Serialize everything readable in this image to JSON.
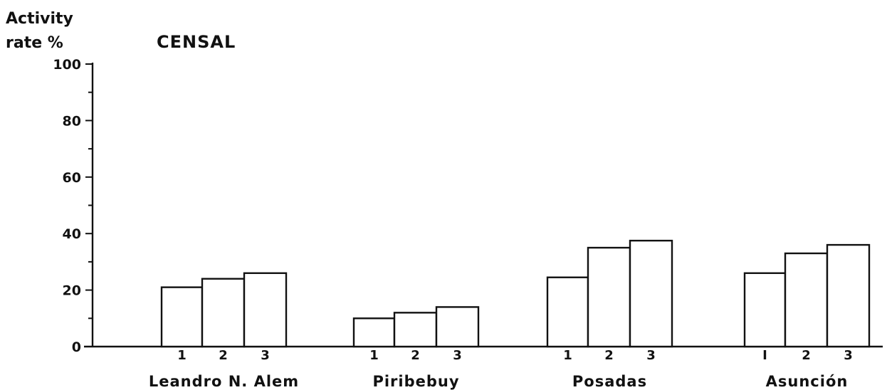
{
  "chart_data": {
    "type": "bar",
    "title": "CENSAL",
    "ylabel_line1": "Activity",
    "ylabel_line2": "rate %",
    "xlabel": "",
    "ylim": [
      0,
      100
    ],
    "yticks": [
      0,
      20,
      40,
      60,
      80,
      100
    ],
    "grid": false,
    "categories": [
      "Leandro N. Alem",
      "Piribebuy",
      "Posadas",
      "Asunción"
    ],
    "sub_labels": [
      "1",
      "2",
      "3"
    ],
    "groups": [
      {
        "name": "Leandro N. Alem",
        "sub_labels": [
          "1",
          "2",
          "3"
        ],
        "values": [
          21,
          24,
          26
        ]
      },
      {
        "name": "Piribebuy",
        "sub_labels": [
          "1",
          "2",
          "3"
        ],
        "values": [
          10,
          12,
          14
        ]
      },
      {
        "name": "Posadas",
        "sub_labels": [
          "1",
          "2",
          "3"
        ],
        "values": [
          24.5,
          35,
          37.5
        ]
      },
      {
        "name": "Asunción",
        "sub_labels": [
          "I",
          "2",
          "3"
        ],
        "values": [
          26,
          33,
          36
        ]
      }
    ]
  }
}
